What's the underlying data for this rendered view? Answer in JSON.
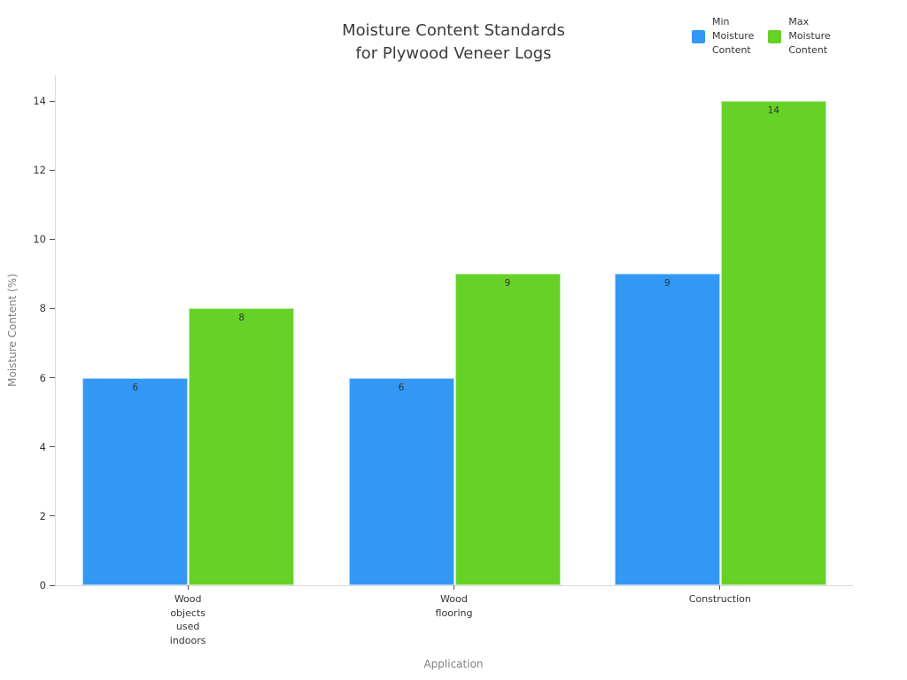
{
  "title": {
    "lines": [
      "Moisture Content Standards",
      "for Plywood Veneer Logs"
    ]
  },
  "legend": {
    "items": [
      {
        "name": "min-moisture-content",
        "lines": [
          "Min",
          "Moisture",
          "Content"
        ],
        "color": "#3398f4"
      },
      {
        "name": "max-moisture-content",
        "lines": [
          "Max",
          "Moisture",
          "Content"
        ],
        "color": "#66d228"
      }
    ]
  },
  "chart_data": {
    "type": "bar",
    "title": "Moisture Content Standards for Plywood Veneer Logs",
    "xlabel": "Application",
    "ylabel": "Moisture Content (%)",
    "categories": [
      "Wood objects used indoors",
      "Wood flooring",
      "Construction"
    ],
    "category_label_lines": [
      [
        "Wood",
        "objects",
        "used",
        "indoors"
      ],
      [
        "Wood",
        "flooring"
      ],
      [
        "Construction"
      ]
    ],
    "series": [
      {
        "name": "Min Moisture Content",
        "color": "#3398f4",
        "values": [
          6,
          6,
          9
        ]
      },
      {
        "name": "Max Moisture Content",
        "color": "#66d228",
        "values": [
          8,
          9,
          14
        ]
      }
    ],
    "ylim": [
      0,
      14
    ],
    "yticks": [
      0,
      2,
      4,
      6,
      8,
      10,
      12,
      14
    ],
    "grid": false,
    "legend_position": "top-right",
    "bar_value_labels": true,
    "colors": {
      "axis_line": "#d9d9d9",
      "tick_text": "#333333",
      "axis_title_text": "#7f7f7f",
      "title_text": "#3b3b3b"
    }
  }
}
